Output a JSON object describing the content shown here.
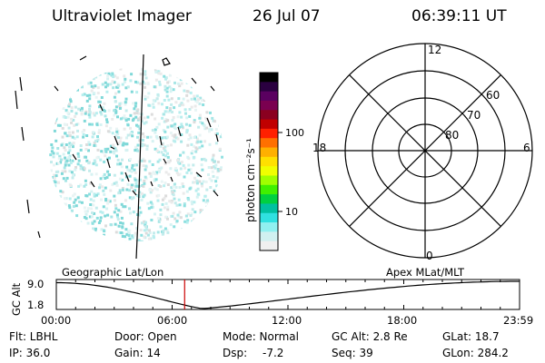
{
  "header": {
    "title": "Ultraviolet Imager",
    "date": "26 Jul 07",
    "time": "06:39:11 UT"
  },
  "colorbar": {
    "units_label": "photon cm⁻²s⁻¹",
    "ticks": [
      "100",
      "10"
    ],
    "scale": "log",
    "colors": [
      "#000000",
      "#2a0040",
      "#5a0060",
      "#7a0050",
      "#8a0020",
      "#c00000",
      "#ff2000",
      "#ff7000",
      "#ffb000",
      "#ffe000",
      "#f0ff00",
      "#a0ff00",
      "#40f000",
      "#00d040",
      "#00c0a0",
      "#30e0e0",
      "#90f0f0",
      "#d0f0f0",
      "#f0f0f0"
    ]
  },
  "polar_plot": {
    "lt_labels": {
      "top": "12",
      "left": "18",
      "right": "6",
      "bottom": "0"
    },
    "lat_labels": [
      "60",
      "70",
      "80"
    ]
  },
  "orbit_plot": {
    "left_title": "Geographic Lat/Lon",
    "right_title": "Apex MLat/MLT",
    "ylabel": "GC Alt",
    "ytick_top": "9.0",
    "ytick_bottom": "1.8",
    "xticks": [
      "00:00",
      "06:00",
      "12:00",
      "18:00",
      "23:59"
    ],
    "marker_time_fraction": 0.277
  },
  "info": {
    "flt": "Flt: LBHL",
    "ip": "IP: 36.0",
    "door": "Door: Open",
    "gain": "Gain: 14",
    "mode": "Mode: Normal",
    "dsp_label": "Dsp:",
    "dsp_value": "-7.2",
    "gcalt": "GC Alt: 2.8 Re",
    "seq": "Seq: 39",
    "glat": "GLat:  18.7",
    "glon": "GLon: 284.2"
  }
}
